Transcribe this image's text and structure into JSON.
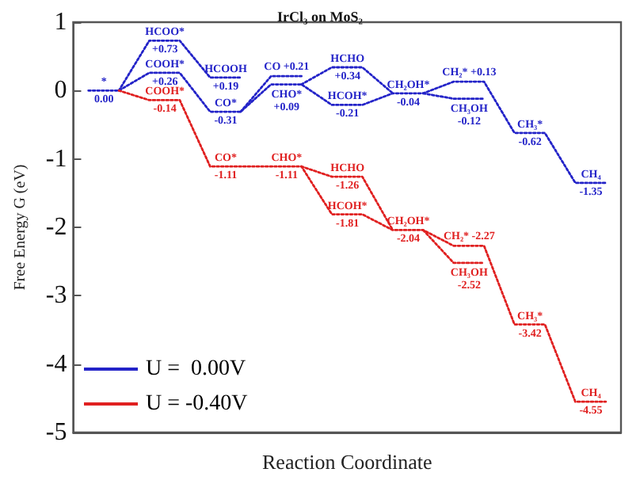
{
  "chart_data": {
    "type": "line",
    "title": "IrCl₃ on MoS₂",
    "xlabel": "Reaction Coordinate",
    "ylabel": "Free Energy G (eV)",
    "categories": [
      null,
      null,
      null,
      null,
      null,
      null,
      null,
      null,
      null,
      null,
      null,
      null,
      null,
      null,
      null,
      null,
      null,
      null
    ],
    "ylim": [
      -5,
      1
    ],
    "yticks": [
      -5,
      -4,
      -3,
      -2,
      -1,
      0,
      1
    ],
    "tick_labels": "y",
    "legend": "bottom left",
    "line_style": "dotted",
    "series": [
      {
        "name": "U =  0.00V",
        "color": "#2323c8",
        "values": [
          0.0,
          0.0,
          0.26,
          0.26,
          -0.31,
          -0.31,
          0.09,
          0.09,
          -0.21,
          -0.21,
          -0.04,
          -0.04,
          0.13,
          0.13,
          -0.62,
          -0.62,
          -1.35,
          -1.35
        ],
        "value_labels": [
          "*\n0.00",
          null,
          "COOH*\n+0.26",
          null,
          "CO*\n-0.31",
          null,
          "CHO*\n+0.09",
          null,
          "HCOH*\n-0.21",
          null,
          "CH₂OH*\n-0.04",
          null,
          "CH₂* +0.13",
          null,
          "CH₃*\n-0.62",
          null,
          "CH₄\n-1.35",
          null
        ]
      },
      {
        "color": "#2323c8",
        "values": [
          null,
          0.0,
          0.73,
          0.73,
          0.19,
          0.19,
          null,
          null,
          null,
          null,
          null,
          null,
          null,
          null,
          null,
          null,
          null,
          null
        ],
        "value_labels": [
          null,
          null,
          "HCOO*\n+0.73",
          null,
          "HCOOH\n+0.19",
          null,
          null,
          null,
          null,
          null,
          null,
          null,
          null,
          null,
          null,
          null,
          null,
          null
        ]
      },
      {
        "color": "#2323c8",
        "values": [
          null,
          null,
          null,
          null,
          null,
          -0.31,
          0.21,
          0.21,
          null,
          null,
          null,
          null,
          null,
          null,
          null,
          null,
          null,
          null
        ],
        "value_labels": [
          null,
          null,
          null,
          null,
          null,
          null,
          "CO +0.21",
          null,
          null,
          null,
          null,
          null,
          null,
          null,
          null,
          null,
          null,
          null
        ]
      },
      {
        "color": "#2323c8",
        "values": [
          null,
          null,
          null,
          null,
          null,
          null,
          null,
          0.09,
          0.34,
          0.34,
          -0.04,
          null,
          null,
          null,
          null,
          null,
          null,
          null
        ],
        "value_labels": [
          null,
          null,
          null,
          null,
          null,
          null,
          null,
          null,
          "HCHO\n+0.34",
          null,
          null,
          null,
          null,
          null,
          null,
          null,
          null,
          null
        ]
      },
      {
        "color": "#2323c8",
        "values": [
          null,
          null,
          null,
          null,
          null,
          null,
          null,
          null,
          null,
          null,
          null,
          -0.04,
          -0.12,
          -0.12,
          null,
          null,
          null,
          null
        ],
        "value_labels": [
          null,
          null,
          null,
          null,
          null,
          null,
          null,
          null,
          null,
          null,
          null,
          null,
          "CH₃OH\n-0.12",
          null,
          null,
          null,
          null,
          null
        ]
      },
      {
        "name": "U = -0.40V",
        "color": "#e02020",
        "values": [
          null,
          0.0,
          -0.14,
          -0.14,
          -1.11,
          -1.11,
          -1.11,
          -1.11,
          -1.81,
          -1.81,
          -2.04,
          -2.04,
          -2.27,
          -2.27,
          -3.42,
          -3.42,
          -4.55,
          -4.55
        ],
        "value_labels": [
          null,
          null,
          "COOH*\n-0.14",
          null,
          "CO*\n-1.11",
          null,
          "CHO*\n-1.11",
          null,
          "HCOH*\n-1.81",
          null,
          "CH₂OH*\n-2.04",
          null,
          "CH₂* -2.27",
          null,
          "CH₃*\n-3.42",
          null,
          "CH₄\n-4.55",
          null
        ]
      },
      {
        "color": "#e02020",
        "values": [
          null,
          null,
          null,
          null,
          null,
          null,
          null,
          -1.11,
          -1.26,
          -1.26,
          -2.04,
          null,
          null,
          null,
          null,
          null,
          null,
          null
        ],
        "value_labels": [
          null,
          null,
          null,
          null,
          null,
          null,
          null,
          null,
          "HCHO\n-1.26",
          null,
          null,
          null,
          null,
          null,
          null,
          null,
          null,
          null
        ]
      },
      {
        "color": "#e02020",
        "values": [
          null,
          null,
          null,
          null,
          null,
          null,
          null,
          null,
          null,
          null,
          null,
          -2.04,
          -2.52,
          -2.52,
          null,
          null,
          null,
          null
        ],
        "value_labels": [
          null,
          null,
          null,
          null,
          null,
          null,
          null,
          null,
          null,
          null,
          null,
          null,
          "CH₃OH\n-2.52",
          null,
          null,
          null,
          null,
          null
        ]
      }
    ]
  }
}
